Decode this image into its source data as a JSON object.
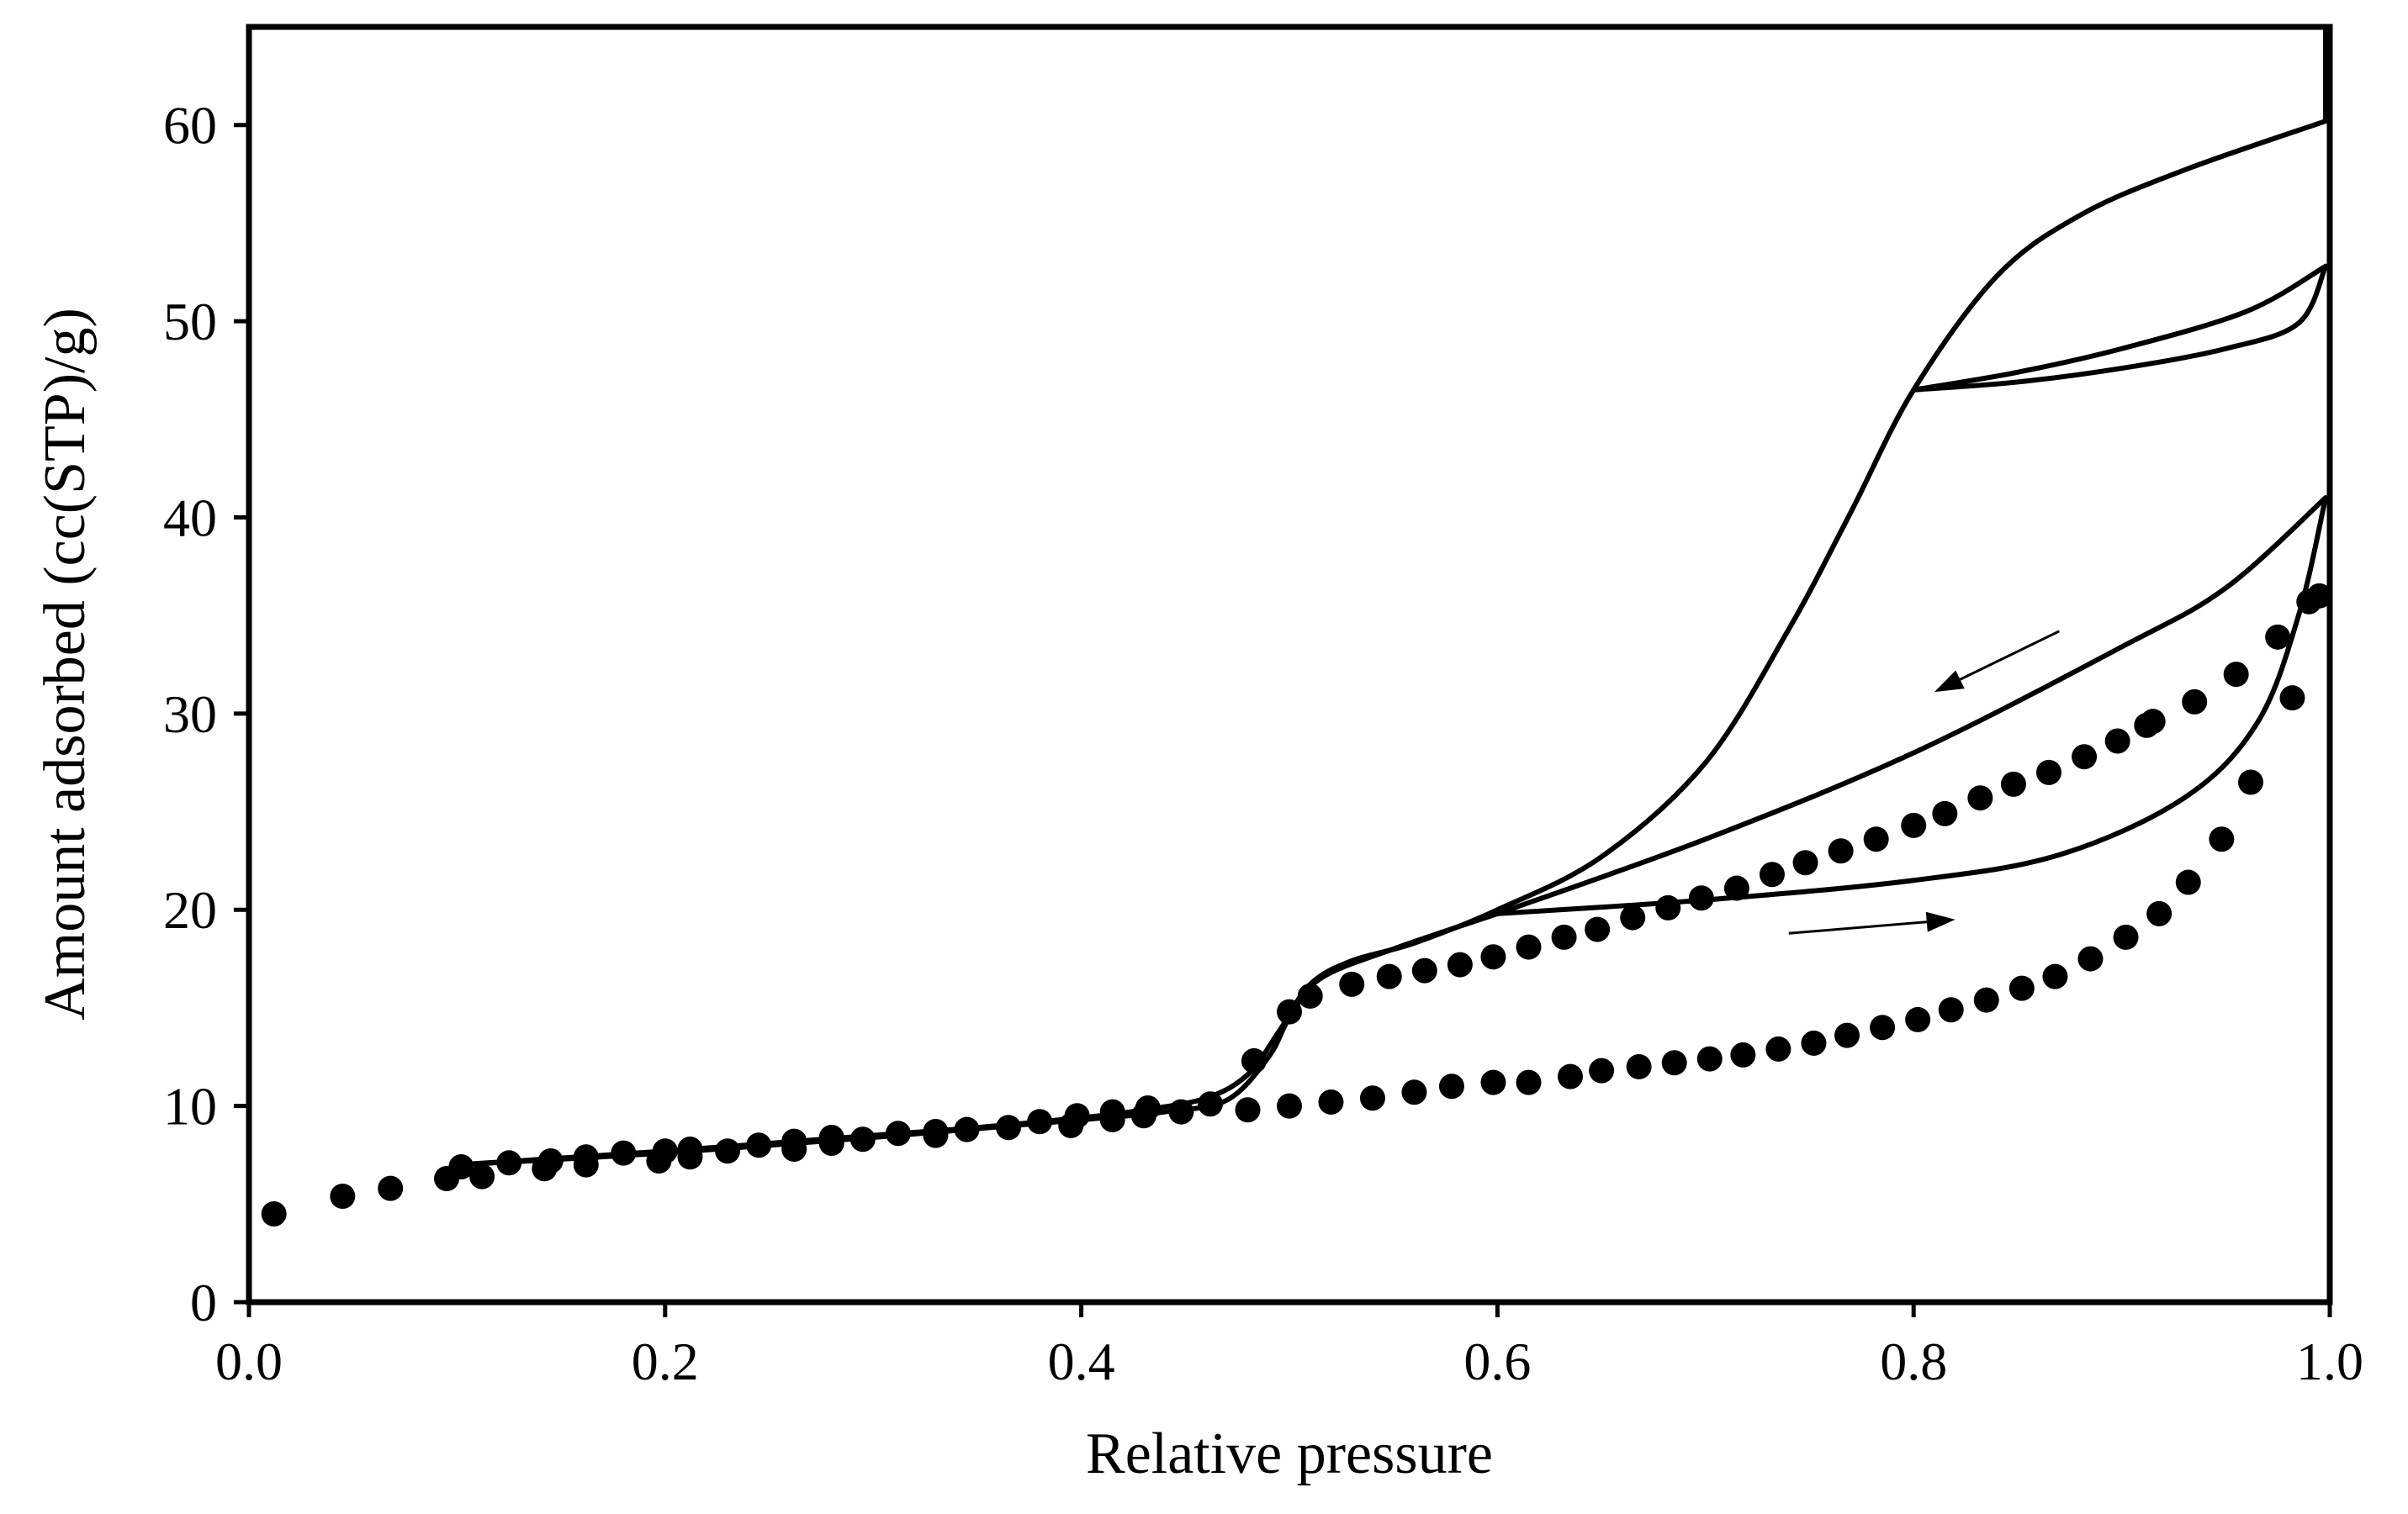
{
  "chart_data": {
    "type": "scatter",
    "title": "",
    "xlabel": "Relative  pressure",
    "ylabel": "Amount  adsorbed (cc(STP)/g)",
    "xlim": [
      0,
      1.0
    ],
    "ylim": [
      0,
      65
    ],
    "x_ticks": [
      0.0,
      0.2,
      0.4,
      0.6,
      0.8,
      1.0
    ],
    "x_tick_labels": [
      "0.0",
      "0.2",
      "0.4",
      "0.6",
      "0.8",
      "1.0"
    ],
    "y_ticks": [
      0,
      10,
      20,
      30,
      40,
      50,
      60
    ],
    "y_tick_labels": [
      "0",
      "10",
      "20",
      "30",
      "40",
      "50",
      "60"
    ],
    "grid": false,
    "legend": "none",
    "series": [
      {
        "name": "measured-adsorption",
        "style": "dots",
        "points": [
          [
            0.012,
            4.5
          ],
          [
            0.045,
            5.4
          ],
          [
            0.068,
            5.8
          ],
          [
            0.095,
            6.3
          ],
          [
            0.102,
            6.9
          ],
          [
            0.112,
            6.4
          ],
          [
            0.125,
            7.1
          ],
          [
            0.142,
            6.8
          ],
          [
            0.145,
            7.2
          ],
          [
            0.162,
            7.0
          ],
          [
            0.162,
            7.4
          ],
          [
            0.18,
            7.6
          ],
          [
            0.197,
            7.2
          ],
          [
            0.2,
            7.7
          ],
          [
            0.212,
            7.4
          ],
          [
            0.212,
            7.8
          ],
          [
            0.23,
            7.7
          ],
          [
            0.245,
            8.0
          ],
          [
            0.262,
            7.8
          ],
          [
            0.262,
            8.2
          ],
          [
            0.28,
            8.1
          ],
          [
            0.28,
            8.4
          ],
          [
            0.295,
            8.3
          ],
          [
            0.312,
            8.6
          ],
          [
            0.33,
            8.5
          ],
          [
            0.33,
            8.7
          ],
          [
            0.345,
            8.8
          ],
          [
            0.365,
            8.9
          ],
          [
            0.38,
            9.2
          ],
          [
            0.395,
            9.0
          ],
          [
            0.398,
            9.5
          ],
          [
            0.415,
            9.3
          ],
          [
            0.415,
            9.7
          ],
          [
            0.43,
            9.5
          ],
          [
            0.432,
            9.9
          ],
          [
            0.448,
            9.7
          ],
          [
            0.462,
            10.1
          ],
          [
            0.483,
            12.3
          ],
          [
            0.5,
            14.8
          ],
          [
            0.51,
            15.6
          ],
          [
            0.53,
            16.2
          ],
          [
            0.548,
            16.6
          ],
          [
            0.565,
            16.9
          ],
          [
            0.582,
            17.2
          ],
          [
            0.598,
            17.6
          ],
          [
            0.615,
            18.1
          ],
          [
            0.632,
            18.6
          ],
          [
            0.648,
            19.0
          ],
          [
            0.665,
            19.6
          ],
          [
            0.682,
            20.1
          ],
          [
            0.698,
            20.6
          ],
          [
            0.715,
            21.1
          ],
          [
            0.732,
            21.8
          ],
          [
            0.748,
            22.4
          ],
          [
            0.765,
            23.0
          ],
          [
            0.782,
            23.6
          ],
          [
            0.8,
            24.3
          ],
          [
            0.815,
            24.9
          ],
          [
            0.832,
            25.7
          ],
          [
            0.848,
            26.4
          ],
          [
            0.865,
            27.0
          ],
          [
            0.882,
            27.8
          ],
          [
            0.898,
            28.6
          ],
          [
            0.912,
            29.4
          ],
          [
            0.915,
            29.6
          ],
          [
            0.935,
            30.6
          ],
          [
            0.955,
            32.0
          ],
          [
            0.975,
            33.9
          ],
          [
            0.99,
            35.7
          ],
          [
            0.995,
            36.0
          ],
          [
            0.48,
            9.8
          ],
          [
            0.5,
            10.0
          ],
          [
            0.52,
            10.2
          ],
          [
            0.54,
            10.4
          ],
          [
            0.56,
            10.7
          ],
          [
            0.578,
            11.0
          ],
          [
            0.598,
            11.2
          ],
          [
            0.615,
            11.2
          ],
          [
            0.635,
            11.5
          ],
          [
            0.65,
            11.8
          ],
          [
            0.668,
            12.0
          ],
          [
            0.685,
            12.2
          ],
          [
            0.702,
            12.4
          ],
          [
            0.718,
            12.6
          ],
          [
            0.735,
            12.9
          ],
          [
            0.752,
            13.2
          ],
          [
            0.768,
            13.6
          ],
          [
            0.785,
            14.0
          ],
          [
            0.802,
            14.4
          ],
          [
            0.818,
            14.9
          ],
          [
            0.835,
            15.4
          ],
          [
            0.852,
            16.0
          ],
          [
            0.868,
            16.6
          ],
          [
            0.885,
            17.5
          ],
          [
            0.902,
            18.6
          ],
          [
            0.918,
            19.8
          ],
          [
            0.932,
            21.4
          ],
          [
            0.948,
            23.6
          ],
          [
            0.962,
            26.5
          ],
          [
            0.982,
            30.8
          ]
        ]
      },
      {
        "name": "model-outer-adsorption",
        "style": "line",
        "points": [
          [
            0.1,
            7.0
          ],
          [
            0.2,
            7.7
          ],
          [
            0.3,
            8.5
          ],
          [
            0.35,
            8.9
          ],
          [
            0.4,
            9.4
          ],
          [
            0.43,
            9.8
          ],
          [
            0.46,
            10.4
          ],
          [
            0.48,
            11.6
          ],
          [
            0.495,
            13.8
          ],
          [
            0.51,
            16.2
          ],
          [
            0.53,
            17.4
          ],
          [
            0.56,
            18.3
          ],
          [
            0.6,
            20.0
          ],
          [
            0.65,
            22.7
          ],
          [
            0.7,
            27.5
          ],
          [
            0.74,
            34.3
          ],
          [
            0.77,
            40.3
          ],
          [
            0.8,
            46.5
          ],
          [
            0.84,
            52.3
          ],
          [
            0.88,
            55.4
          ],
          [
            0.93,
            57.7
          ],
          [
            0.998,
            60.2
          ]
        ]
      },
      {
        "name": "model-outer-desorption",
        "style": "line",
        "points": [
          [
            0.998,
            60.2
          ],
          [
            0.998,
            65.0
          ]
        ]
      },
      {
        "name": "model-inner-adsorption",
        "style": "line",
        "points": [
          [
            0.1,
            7.0
          ],
          [
            0.2,
            7.6
          ],
          [
            0.3,
            8.4
          ],
          [
            0.4,
            9.3
          ],
          [
            0.44,
            9.7
          ],
          [
            0.47,
            10.3
          ],
          [
            0.49,
            12.5
          ],
          [
            0.5,
            14.5
          ],
          [
            0.515,
            16.5
          ],
          [
            0.55,
            18.0
          ],
          [
            0.6,
            19.8
          ]
        ]
      },
      {
        "name": "scan-loop-1-desorption",
        "style": "line",
        "points": [
          [
            0.998,
            52.8
          ],
          [
            0.96,
            50.5
          ],
          [
            0.9,
            48.6
          ],
          [
            0.85,
            47.4
          ],
          [
            0.8,
            46.5
          ]
        ]
      },
      {
        "name": "scan-loop-1-adsorption",
        "style": "line",
        "points": [
          [
            0.8,
            46.5
          ],
          [
            0.85,
            46.9
          ],
          [
            0.9,
            47.6
          ],
          [
            0.95,
            48.6
          ],
          [
            0.985,
            49.9
          ],
          [
            0.998,
            52.8
          ]
        ]
      },
      {
        "name": "scan-loop-2-desorption",
        "style": "line",
        "points": [
          [
            0.998,
            41.0
          ],
          [
            0.95,
            36.4
          ],
          [
            0.9,
            33.4
          ],
          [
            0.8,
            28.0
          ],
          [
            0.7,
            23.6
          ],
          [
            0.6,
            19.8
          ]
        ]
      },
      {
        "name": "scan-loop-2-adsorption",
        "style": "line",
        "points": [
          [
            0.6,
            19.8
          ],
          [
            0.7,
            20.5
          ],
          [
            0.8,
            21.5
          ],
          [
            0.87,
            22.8
          ],
          [
            0.93,
            25.7
          ],
          [
            0.965,
            29.5
          ],
          [
            0.985,
            35.0
          ],
          [
            0.998,
            41.0
          ]
        ]
      }
    ],
    "annotations": [
      {
        "name": "desorption-arrow",
        "from": [
          0.87,
          34.2
        ],
        "to": [
          0.81,
          31.1
        ]
      },
      {
        "name": "adsorption-arrow",
        "from": [
          0.74,
          18.8
        ],
        "to": [
          0.82,
          19.5
        ]
      }
    ]
  }
}
